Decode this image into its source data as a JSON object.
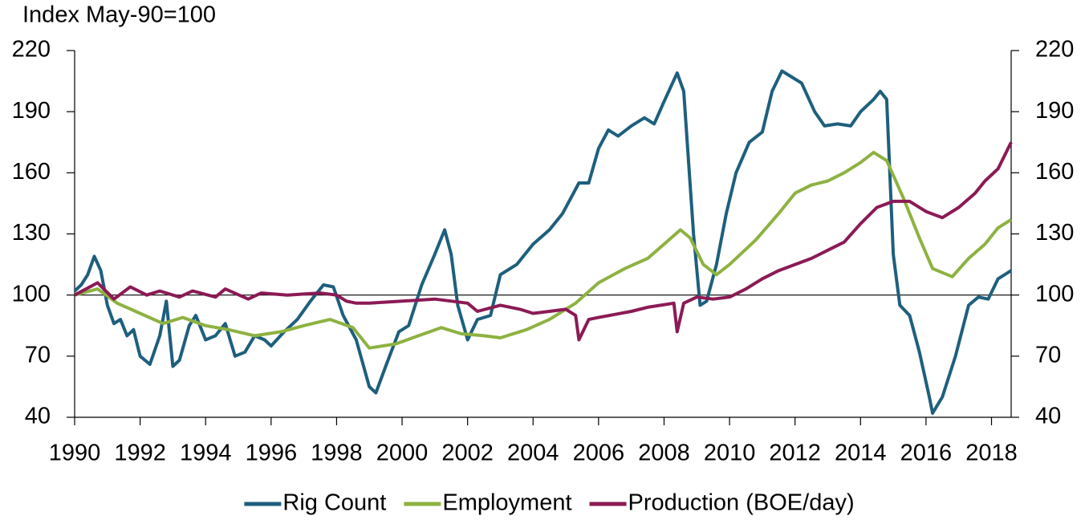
{
  "chart_data": {
    "type": "line",
    "y_label": "Index May-90=100",
    "xlim": [
      1990,
      2018.6
    ],
    "xticks": [
      1990,
      1992,
      1994,
      1996,
      1998,
      2000,
      2002,
      2004,
      2006,
      2008,
      2010,
      2012,
      2014,
      2016,
      2018
    ],
    "ylim": [
      40,
      220
    ],
    "yticks": [
      40,
      70,
      100,
      130,
      160,
      190,
      220
    ],
    "y2lim": [
      40,
      220
    ],
    "y2ticks": [
      40,
      70,
      100,
      130,
      160,
      190,
      220
    ],
    "reference_line": 100,
    "legend": "bottom",
    "series": [
      {
        "name": "Rig Count",
        "color": "#1e5f7d",
        "x": [
          1990.0,
          1990.2,
          1990.4,
          1990.6,
          1990.8,
          1991.0,
          1991.2,
          1991.4,
          1991.6,
          1991.8,
          1992.0,
          1992.3,
          1992.6,
          1992.8,
          1993.0,
          1993.2,
          1993.5,
          1993.7,
          1994.0,
          1994.3,
          1994.6,
          1994.9,
          1995.2,
          1995.5,
          1995.8,
          1996.0,
          1996.4,
          1996.8,
          1997.2,
          1997.6,
          1997.9,
          1998.2,
          1998.6,
          1999.0,
          1999.2,
          1999.5,
          1999.9,
          2000.2,
          2000.6,
          2001.0,
          2001.3,
          2001.5,
          2001.7,
          2002.0,
          2002.3,
          2002.7,
          2003.0,
          2003.5,
          2004.0,
          2004.5,
          2004.9,
          2005.4,
          2005.7,
          2006.0,
          2006.3,
          2006.6,
          2007.0,
          2007.4,
          2007.7,
          2008.0,
          2008.4,
          2008.6,
          2008.9,
          2009.1,
          2009.3,
          2009.6,
          2009.9,
          2010.2,
          2010.6,
          2011.0,
          2011.3,
          2011.6,
          2011.9,
          2012.2,
          2012.6,
          2012.9,
          2013.3,
          2013.7,
          2014.0,
          2014.4,
          2014.6,
          2014.8,
          2015.0,
          2015.2,
          2015.5,
          2015.8,
          2016.1,
          2016.2,
          2016.5,
          2016.9,
          2017.3,
          2017.6,
          2017.9,
          2018.2,
          2018.6
        ],
        "values": [
          102,
          105,
          110,
          119,
          112,
          95,
          86,
          88,
          80,
          83,
          70,
          66,
          80,
          97,
          65,
          68,
          85,
          90,
          78,
          80,
          86,
          70,
          72,
          80,
          78,
          75,
          82,
          88,
          97,
          105,
          104,
          90,
          78,
          55,
          52,
          65,
          82,
          85,
          105,
          120,
          132,
          120,
          95,
          78,
          88,
          90,
          110,
          115,
          125,
          132,
          140,
          155,
          155,
          172,
          181,
          178,
          183,
          187,
          184,
          195,
          209,
          200,
          130,
          95,
          97,
          115,
          140,
          160,
          175,
          180,
          200,
          210,
          207,
          204,
          190,
          183,
          184,
          183,
          190,
          196,
          200,
          196,
          120,
          95,
          90,
          72,
          50,
          42,
          50,
          70,
          95,
          99,
          98,
          108,
          112
        ]
      },
      {
        "name": "Employment",
        "color": "#8db241",
        "x": [
          1990,
          1990.7,
          1991.3,
          1992,
          1992.7,
          1993.3,
          1994,
          1994.7,
          1995.5,
          1996.3,
          1997,
          1997.8,
          1998.5,
          1999,
          1999.8,
          2000.5,
          2001.2,
          2001.8,
          2002.5,
          2003,
          2003.8,
          2004.5,
          2005.3,
          2006,
          2006.8,
          2007.5,
          2008,
          2008.5,
          2008.8,
          2009.2,
          2009.6,
          2010,
          2010.8,
          2011.5,
          2012,
          2012.5,
          2013,
          2013.5,
          2014,
          2014.4,
          2014.8,
          2015.3,
          2015.8,
          2016.2,
          2016.8,
          2017.3,
          2017.8,
          2018.2,
          2018.6
        ],
        "values": [
          100,
          103,
          96,
          91,
          86,
          89,
          85,
          83,
          80,
          82,
          85,
          88,
          84,
          74,
          76,
          80,
          84,
          81,
          80,
          79,
          83,
          88,
          96,
          106,
          113,
          118,
          125,
          132,
          128,
          115,
          110,
          115,
          127,
          140,
          150,
          154,
          156,
          160,
          165,
          170,
          166,
          148,
          128,
          113,
          109,
          118,
          125,
          133,
          137
        ]
      },
      {
        "name": "Production (BOE/day)",
        "color": "#8b1a55",
        "x": [
          1990,
          1990.7,
          1991.2,
          1991.7,
          1992.2,
          1992.6,
          1993.2,
          1993.6,
          1994.3,
          1994.6,
          1995.3,
          1995.7,
          1996.5,
          1997.5,
          1998,
          1998.3,
          1998.6,
          1999,
          2000,
          2001,
          2002,
          2002.3,
          2003,
          2003.6,
          2004,
          2004.5,
          2005,
          2005.3,
          2005.4,
          2005.7,
          2006,
          2007,
          2007.5,
          2008.3,
          2008.4,
          2008.6,
          2009,
          2009.5,
          2010,
          2010.5,
          2011,
          2011.5,
          2012,
          2012.5,
          2013,
          2013.5,
          2014,
          2014.5,
          2015,
          2015.5,
          2016,
          2016.5,
          2017,
          2017.5,
          2017.8,
          2018.2,
          2018.6
        ],
        "values": [
          100,
          106,
          98,
          104,
          100,
          102,
          99,
          102,
          99,
          103,
          98,
          101,
          100,
          101,
          100,
          97,
          96,
          96,
          97,
          98,
          96,
          92,
          95,
          93,
          91,
          92,
          93,
          90,
          78,
          88,
          89,
          92,
          94,
          96,
          82,
          96,
          99,
          98,
          99,
          103,
          108,
          112,
          115,
          118,
          122,
          126,
          135,
          143,
          146,
          146,
          141,
          138,
          143,
          150,
          156,
          162,
          175
        ]
      }
    ]
  }
}
